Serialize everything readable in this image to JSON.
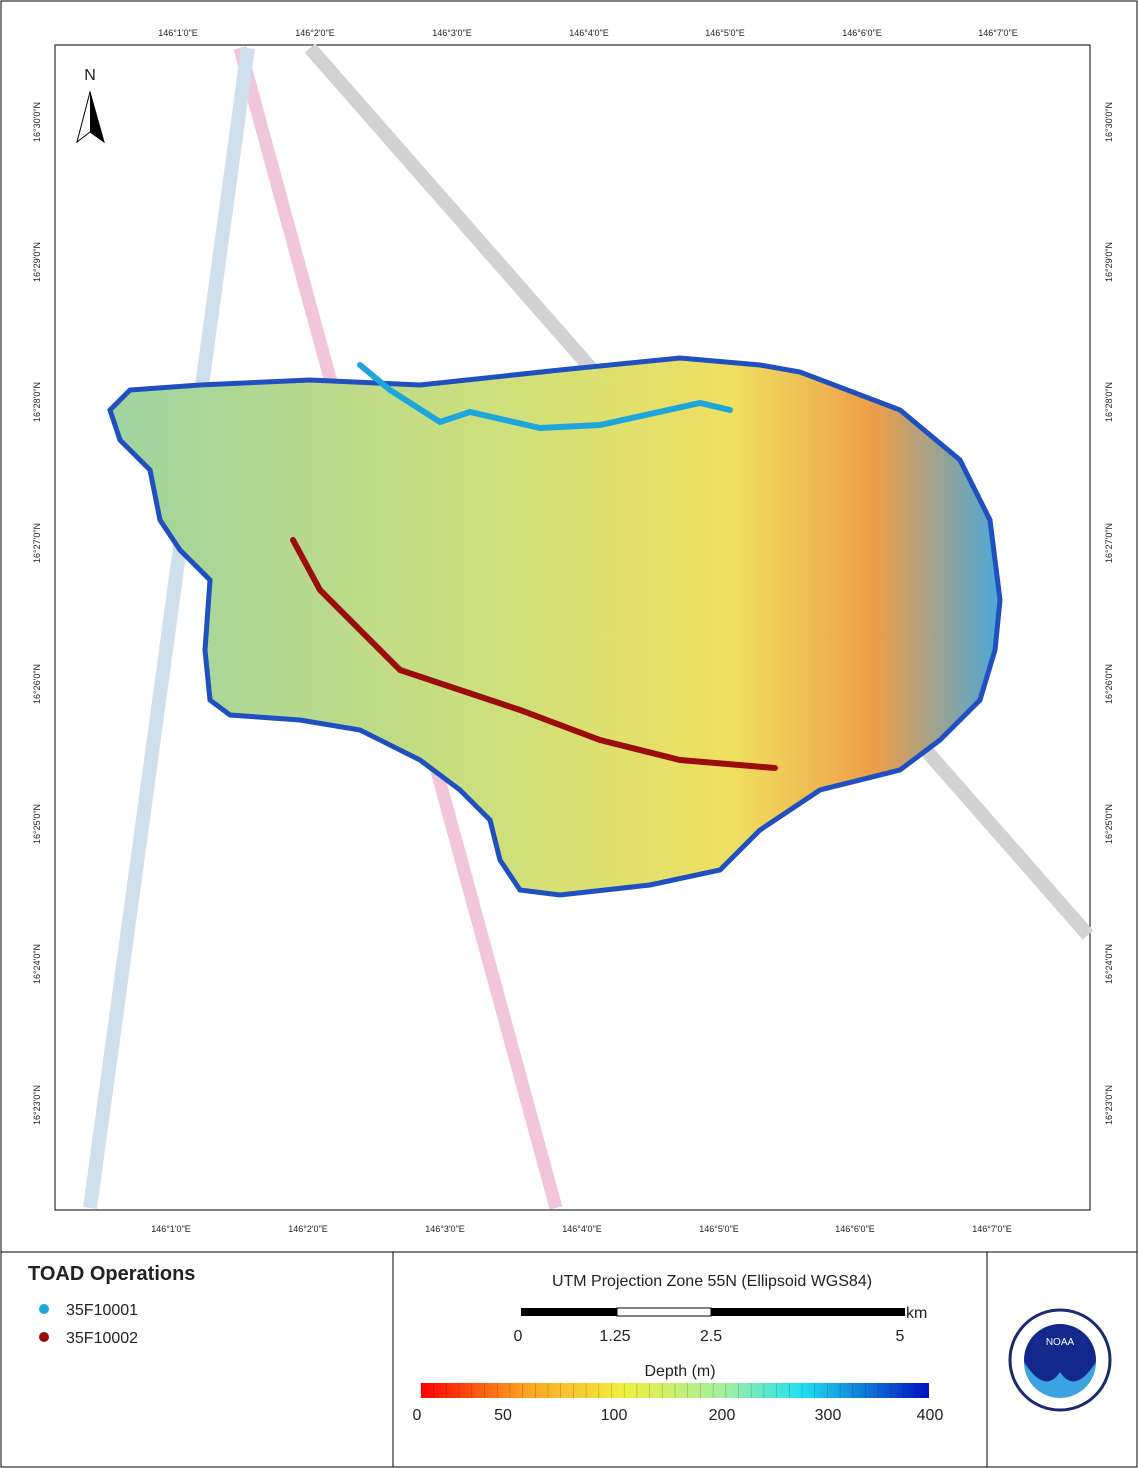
{
  "map": {
    "north": "N",
    "x_labels": [
      "146°1'0\"E",
      "146°2'0\"E",
      "146°3'0\"E",
      "146°4'0\"E",
      "146°5'0\"E",
      "146°6'0\"E",
      "146°7'0\"E"
    ],
    "y_labels": [
      "16°30'0\"N",
      "16°29'0\"N",
      "16°28'0\"N",
      "16°27'0\"N",
      "16°26'0\"N",
      "16°25'0\"N",
      "16°24'0\"N",
      "16°23'0\"N"
    ]
  },
  "legend": {
    "title": "TOAD Operations",
    "items": [
      "35F10001",
      "35F10002"
    ]
  },
  "projection": "UTM Projection Zone 55N (Ellipsoid WGS84)",
  "scale_bar": {
    "unit": "km",
    "labels": [
      "0",
      "1.25",
      "2.5",
      "5"
    ]
  },
  "depth_bar": {
    "title": "Depth (m)",
    "labels": [
      "0",
      "50",
      "100",
      "200",
      "300",
      "400"
    ]
  },
  "logo": "NOAA"
}
